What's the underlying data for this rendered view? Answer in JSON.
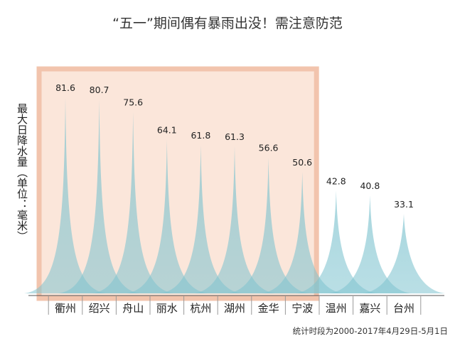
{
  "chart_data": {
    "type": "area",
    "title": "“五一”期间偶有暴雨出没！需注意防范",
    "ylabel": "最大日降水量（单位：毫米）",
    "categories": [
      "衢州",
      "绍兴",
      "舟山",
      "丽水",
      "杭州",
      "湖州",
      "金华",
      "宁波",
      "温州",
      "嘉兴",
      "台州"
    ],
    "values": [
      81.6,
      80.7,
      75.6,
      64.1,
      61.8,
      61.3,
      56.6,
      50.6,
      42.8,
      40.8,
      33.1
    ],
    "value_labels": [
      "81.6",
      "80.7",
      "75.6",
      "64.1",
      "61.8",
      "61.3",
      "56.6",
      "50.6",
      "42.8",
      "40.8",
      "33.1"
    ],
    "highlighted_categories": [
      "衢州",
      "绍兴",
      "舟山",
      "丽水",
      "杭州",
      "湖州",
      "金华",
      "宁波"
    ],
    "grid": false,
    "legend": "none",
    "colors": {
      "peak": "#7ec3cf",
      "highlight_fill": "#fbe6da",
      "highlight_border": "#f2c4ad",
      "axis": "#555555",
      "text": "#222222"
    }
  },
  "note": "统计时段为2000-2017年4月29日-5月1日"
}
